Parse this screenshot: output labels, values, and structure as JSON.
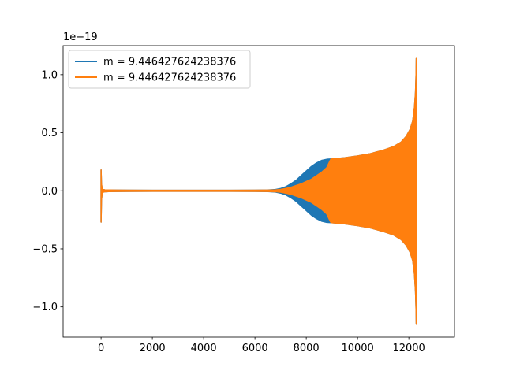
{
  "chart_data": {
    "type": "line",
    "title": "",
    "xlabel": "",
    "ylabel": "",
    "y_offset_label": "1e−19",
    "xlim": [
      -1480,
      13780
    ],
    "ylim": [
      -1.26,
      1.25
    ],
    "x_ticks": [
      0,
      2000,
      4000,
      6000,
      8000,
      10000,
      12000
    ],
    "x_tick_labels": [
      "0",
      "2000",
      "4000",
      "6000",
      "8000",
      "10000",
      "12000"
    ],
    "y_ticks": [
      -1.0,
      -0.5,
      0.0,
      0.5,
      1.0
    ],
    "y_tick_labels": [
      "−1.0",
      "−0.5",
      "0.0",
      "0.5",
      "1.0"
    ],
    "grid": false,
    "legend_position": "upper-left",
    "series": [
      {
        "name": "m = 9.446427624238376",
        "color": "#1f77b4",
        "envelope_x": [
          0,
          15,
          40,
          80,
          150,
          300,
          500,
          1000,
          2000,
          3000,
          4000,
          5000,
          6000,
          6500,
          6800,
          7000,
          7200,
          7400,
          7600,
          7800,
          8000,
          8200,
          8400,
          8600,
          8800,
          9000,
          9500,
          10000,
          10500,
          11000,
          11400,
          11700,
          11900,
          12050,
          12150,
          12220,
          12260,
          12280,
          12290
        ],
        "envelope_upper": [
          0.18,
          0.06,
          0.02,
          0.01,
          0.008,
          0.007,
          0.006,
          0.005,
          0.004,
          0.004,
          0.004,
          0.004,
          0.005,
          0.007,
          0.011,
          0.02,
          0.035,
          0.06,
          0.09,
          0.13,
          0.17,
          0.21,
          0.24,
          0.262,
          0.272,
          0.275,
          0.285,
          0.3,
          0.32,
          0.35,
          0.38,
          0.42,
          0.47,
          0.53,
          0.6,
          0.72,
          0.85,
          1.0,
          1.14
        ],
        "envelope_lower": [
          -0.27,
          -0.08,
          -0.025,
          -0.012,
          -0.008,
          -0.007,
          -0.006,
          -0.005,
          -0.004,
          -0.004,
          -0.004,
          -0.004,
          -0.005,
          -0.007,
          -0.011,
          -0.02,
          -0.035,
          -0.06,
          -0.09,
          -0.13,
          -0.17,
          -0.21,
          -0.24,
          -0.262,
          -0.272,
          -0.275,
          -0.285,
          -0.3,
          -0.32,
          -0.35,
          -0.38,
          -0.42,
          -0.47,
          -0.53,
          -0.6,
          -0.72,
          -0.87,
          -1.02,
          -1.15
        ]
      },
      {
        "name": "m = 9.446427624238376",
        "color": "#ff7f0e",
        "envelope_x": [
          0,
          15,
          40,
          80,
          150,
          300,
          500,
          1000,
          2000,
          3000,
          4000,
          5000,
          6000,
          6500,
          6800,
          7000,
          7200,
          7400,
          7600,
          7800,
          8000,
          8200,
          8400,
          8600,
          8800,
          8950,
          9000,
          9500,
          10000,
          10500,
          11000,
          11400,
          11700,
          11900,
          12050,
          12150,
          12220,
          12260,
          12280,
          12290
        ],
        "envelope_upper": [
          0.18,
          0.06,
          0.02,
          0.01,
          0.008,
          0.007,
          0.006,
          0.005,
          0.004,
          0.004,
          0.004,
          0.004,
          0.005,
          0.006,
          0.008,
          0.012,
          0.02,
          0.03,
          0.045,
          0.06,
          0.08,
          0.1,
          0.13,
          0.16,
          0.2,
          0.27,
          0.275,
          0.285,
          0.3,
          0.32,
          0.35,
          0.38,
          0.42,
          0.47,
          0.53,
          0.6,
          0.72,
          0.85,
          1.0,
          1.14
        ],
        "envelope_lower": [
          -0.27,
          -0.08,
          -0.025,
          -0.012,
          -0.008,
          -0.007,
          -0.006,
          -0.005,
          -0.004,
          -0.004,
          -0.004,
          -0.004,
          -0.005,
          -0.006,
          -0.008,
          -0.012,
          -0.02,
          -0.03,
          -0.045,
          -0.06,
          -0.08,
          -0.1,
          -0.13,
          -0.16,
          -0.2,
          -0.27,
          -0.275,
          -0.285,
          -0.3,
          -0.32,
          -0.35,
          -0.38,
          -0.42,
          -0.47,
          -0.53,
          -0.6,
          -0.72,
          -0.87,
          -1.02,
          -1.15
        ]
      }
    ]
  }
}
